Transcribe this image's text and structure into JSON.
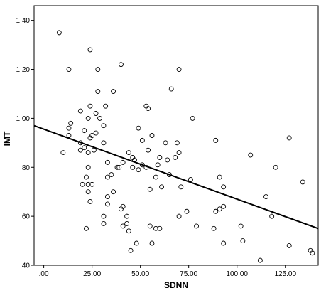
{
  "chart_data": {
    "type": "scatter",
    "xlabel": "SDNN",
    "ylabel": "IMT",
    "xlim": [
      -5,
      142
    ],
    "ylim": [
      0.4,
      1.46
    ],
    "x_ticks": [
      0,
      25,
      50,
      75,
      100,
      125
    ],
    "x_tick_labels": [
      ".00",
      "25.00",
      "50.00",
      "75.00",
      "100.00",
      "125.00"
    ],
    "y_ticks": [
      0.4,
      0.6,
      0.8,
      1.0,
      1.2,
      1.4
    ],
    "y_tick_labels": [
      ".40",
      ".60",
      ".80",
      "1.00",
      "1.20",
      "1.40"
    ],
    "grid": false,
    "fit_line": {
      "x": [
        -5,
        142
      ],
      "y": [
        0.97,
        0.55
      ]
    },
    "points": [
      [
        8,
        1.35
      ],
      [
        24,
        1.28
      ],
      [
        13,
        1.2
      ],
      [
        28,
        1.2
      ],
      [
        40,
        1.22
      ],
      [
        70,
        1.2
      ],
      [
        36,
        1.11
      ],
      [
        28,
        1.11
      ],
      [
        66,
        1.12
      ],
      [
        24,
        1.05
      ],
      [
        32,
        1.05
      ],
      [
        53,
        1.05
      ],
      [
        54,
        1.04
      ],
      [
        19,
        1.03
      ],
      [
        27,
        1.02
      ],
      [
        29,
        1.0
      ],
      [
        23,
        1.0
      ],
      [
        77,
        1.0
      ],
      [
        14,
        0.98
      ],
      [
        31,
        0.97
      ],
      [
        13,
        0.96
      ],
      [
        49,
        0.96
      ],
      [
        21,
        0.95
      ],
      [
        27,
        0.94
      ],
      [
        13,
        0.93
      ],
      [
        25,
        0.93
      ],
      [
        24,
        0.92
      ],
      [
        56,
        0.93
      ],
      [
        51,
        0.91
      ],
      [
        63,
        0.9
      ],
      [
        69,
        0.9
      ],
      [
        89,
        0.91
      ],
      [
        127,
        0.92
      ],
      [
        19,
        0.9
      ],
      [
        31,
        0.9
      ],
      [
        21,
        0.88
      ],
      [
        19,
        0.87
      ],
      [
        26,
        0.87
      ],
      [
        54,
        0.87
      ],
      [
        10,
        0.86
      ],
      [
        23,
        0.86
      ],
      [
        44,
        0.86
      ],
      [
        70,
        0.86
      ],
      [
        107,
        0.85
      ],
      [
        46,
        0.84
      ],
      [
        60,
        0.84
      ],
      [
        68,
        0.84
      ],
      [
        64,
        0.83
      ],
      [
        47,
        0.83
      ],
      [
        41,
        0.82
      ],
      [
        33,
        0.82
      ],
      [
        51,
        0.81
      ],
      [
        53,
        0.8
      ],
      [
        59,
        0.81
      ],
      [
        39,
        0.8
      ],
      [
        38,
        0.8
      ],
      [
        46,
        0.8
      ],
      [
        23,
        0.8
      ],
      [
        49,
        0.79
      ],
      [
        120,
        0.8
      ],
      [
        35,
        0.77
      ],
      [
        65,
        0.77
      ],
      [
        58,
        0.76
      ],
      [
        22,
        0.76
      ],
      [
        33,
        0.76
      ],
      [
        91,
        0.76
      ],
      [
        76,
        0.75
      ],
      [
        23,
        0.73
      ],
      [
        20,
        0.73
      ],
      [
        25,
        0.73
      ],
      [
        61,
        0.72
      ],
      [
        71,
        0.72
      ],
      [
        93,
        0.72
      ],
      [
        134,
        0.74
      ],
      [
        55,
        0.71
      ],
      [
        23,
        0.7
      ],
      [
        36,
        0.7
      ],
      [
        115,
        0.68
      ],
      [
        33,
        0.68
      ],
      [
        24,
        0.66
      ],
      [
        33,
        0.65
      ],
      [
        41,
        0.64
      ],
      [
        74,
        0.62
      ],
      [
        91,
        0.63
      ],
      [
        93,
        0.64
      ],
      [
        79,
        0.56
      ],
      [
        40,
        0.63
      ],
      [
        31,
        0.6
      ],
      [
        43,
        0.6
      ],
      [
        70,
        0.6
      ],
      [
        89,
        0.62
      ],
      [
        118,
        0.6
      ],
      [
        41,
        0.56
      ],
      [
        31,
        0.57
      ],
      [
        43,
        0.57
      ],
      [
        60,
        0.55
      ],
      [
        88,
        0.55
      ],
      [
        102,
        0.56
      ],
      [
        22,
        0.55
      ],
      [
        55,
        0.56
      ],
      [
        44,
        0.54
      ],
      [
        58,
        0.55
      ],
      [
        56,
        0.49
      ],
      [
        48,
        0.49
      ],
      [
        93,
        0.49
      ],
      [
        103,
        0.5
      ],
      [
        127,
        0.48
      ],
      [
        45,
        0.46
      ],
      [
        138,
        0.46
      ],
      [
        139,
        0.45
      ],
      [
        112,
        0.42
      ]
    ]
  }
}
